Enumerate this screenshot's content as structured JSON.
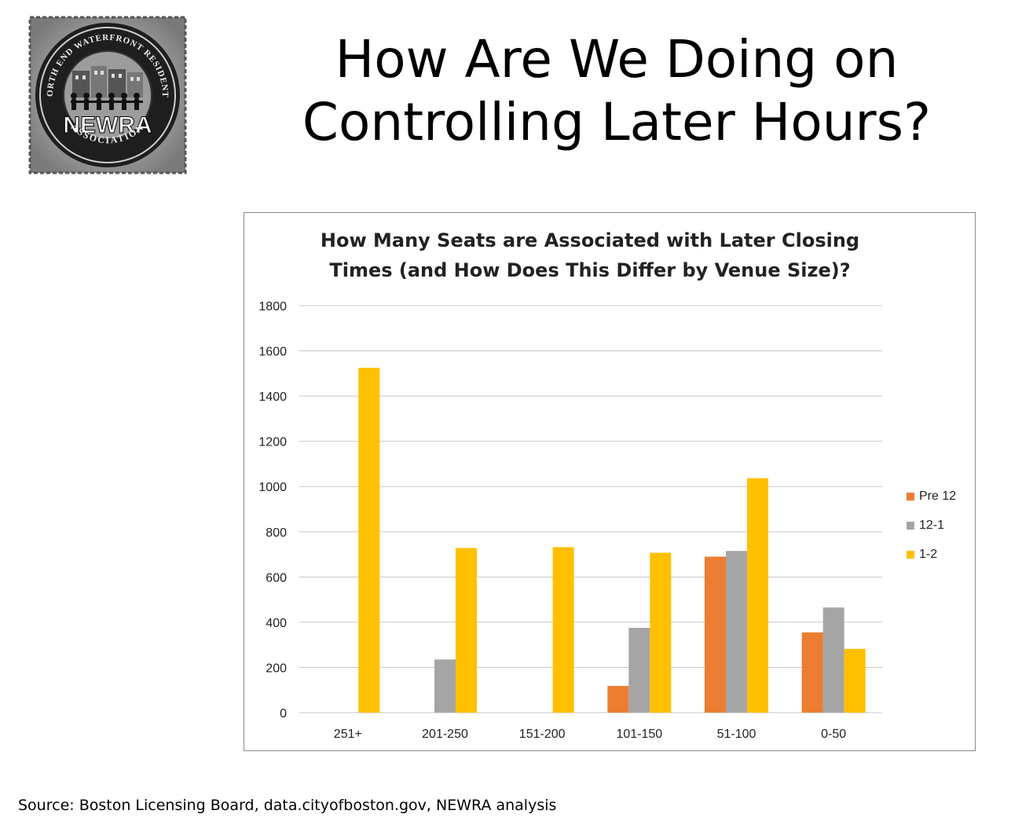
{
  "slide": {
    "title": "How Are We Doing on\nControlling Later Hours?",
    "source": "Source: Boston Licensing Board, data.cityofboston.gov, NEWRA analysis"
  },
  "logo": {
    "text_main": "NEWRA",
    "text_top": "NORTH END WATERFRONT RESIDENTS",
    "text_bottom": "ASSOCIATION"
  },
  "chart_data": {
    "type": "bar",
    "title": "How Many Seats are Associated with Later Closing\nTimes (and How Does This Differ by Venue Size)?",
    "categories": [
      "251+",
      "201-250",
      "151-200",
      "101-150",
      "51-100",
      "0-50"
    ],
    "series": [
      {
        "name": "Pre 12",
        "color": "#ED7D31",
        "values": [
          0,
          0,
          0,
          118,
          690,
          355
        ]
      },
      {
        "name": "12-1",
        "color": "#A5A5A5",
        "values": [
          0,
          235,
          0,
          375,
          715,
          465
        ]
      },
      {
        "name": "1-2",
        "color": "#FFC000",
        "values": [
          1525,
          728,
          732,
          707,
          1037,
          282
        ]
      }
    ],
    "ylim": [
      0,
      1800
    ],
    "yticks": [
      0,
      200,
      400,
      600,
      800,
      1000,
      1200,
      1400,
      1600,
      1800
    ],
    "grid": true,
    "legend_position": "right"
  }
}
